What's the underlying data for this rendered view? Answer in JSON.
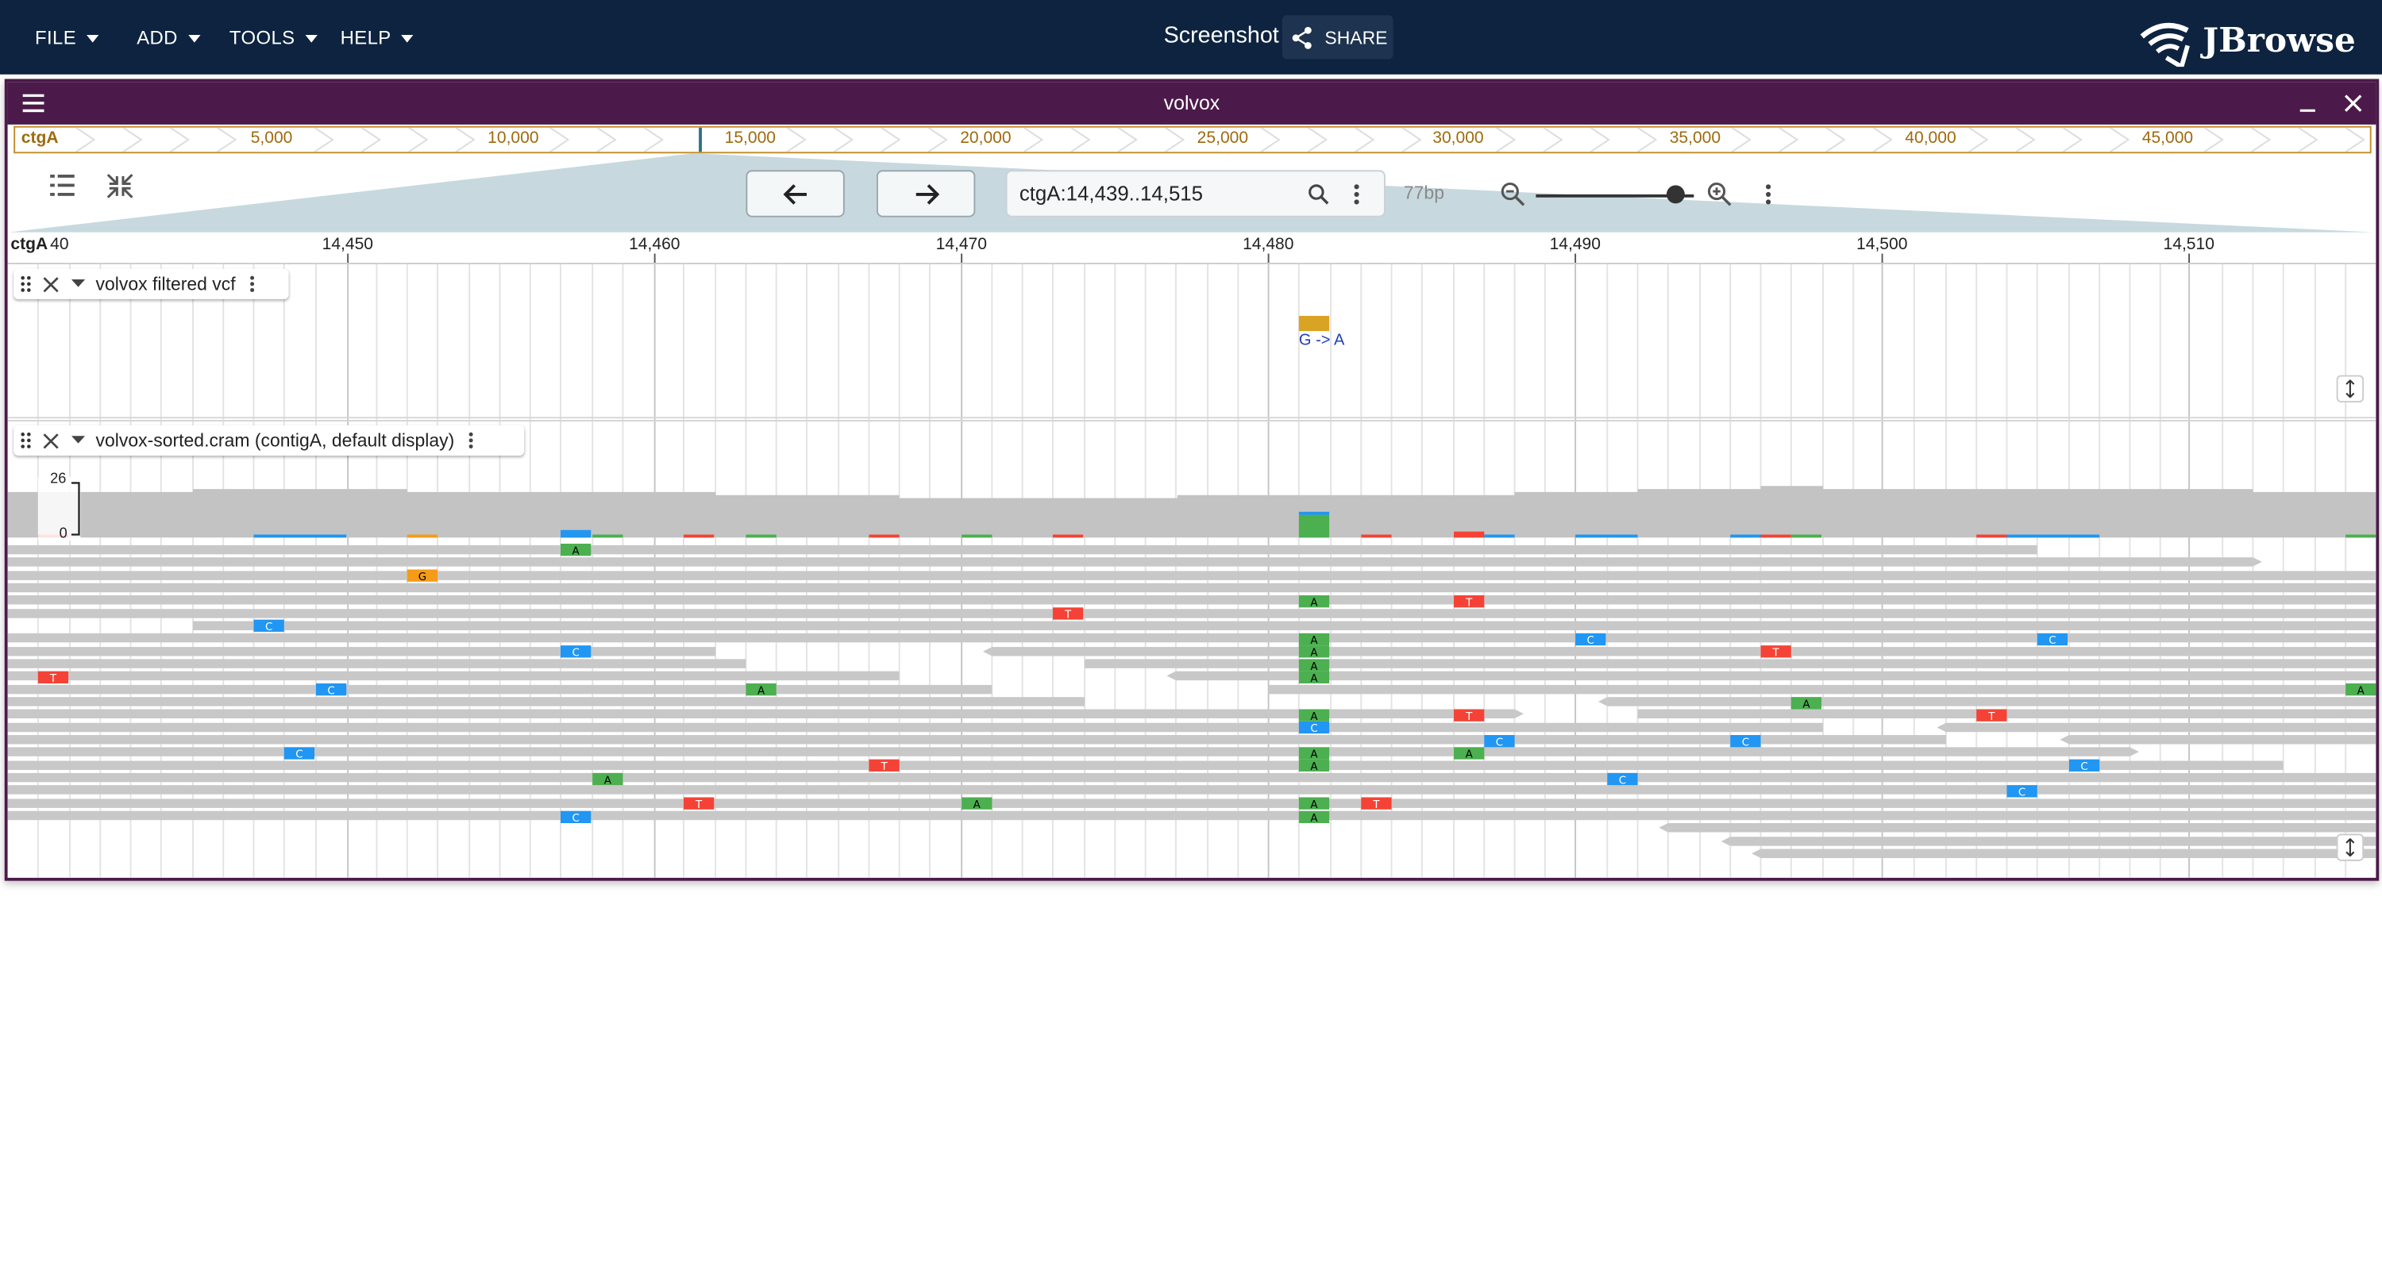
{
  "app": {
    "menus": [
      "FILE",
      "ADD",
      "TOOLS",
      "HELP"
    ],
    "title": "Screenshot",
    "share_label": "SHARE",
    "logo_text": "JBrowse"
  },
  "view": {
    "name": "volvox",
    "overview": {
      "ref_name": "ctgA",
      "ticks": [
        "5,000",
        "10,000",
        "15,000",
        "20,000",
        "25,000",
        "30,000",
        "35,000",
        "40,000",
        "45,000"
      ]
    },
    "location": "ctgA:14,439..14,515",
    "bp_label": "77bp",
    "zoom_level": 0.88,
    "ruler": {
      "ref_name": "ctgA",
      "first_label": "40",
      "ticks": [
        "14,450",
        "14,460",
        "14,470",
        "14,480",
        "14,490",
        "14,500",
        "14,510"
      ]
    }
  },
  "tracks": [
    {
      "name": "volvox filtered vcf",
      "variant_label": "G -> A"
    },
    {
      "name": "volvox-sorted.cram (contigA, default display)",
      "coverage_max": "26",
      "coverage_min": "0"
    }
  ],
  "colors": {
    "appbar": "#0d233f",
    "view_header": "#4b1a4a",
    "variant": "#d9a323",
    "base_A": "#4caf50",
    "base_C": "#2196f3",
    "base_G": "#f59b17",
    "base_T": "#f44336",
    "read": "#c8c8c8"
  }
}
